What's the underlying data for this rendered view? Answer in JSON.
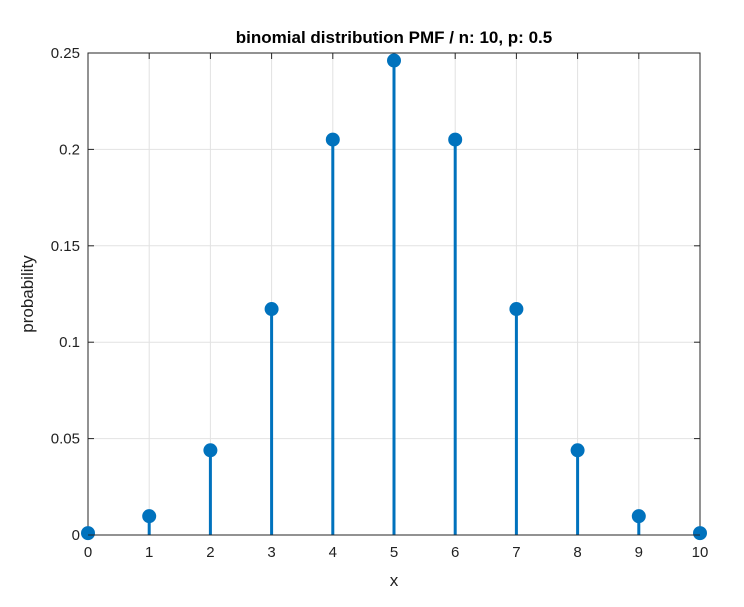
{
  "chart_data": {
    "type": "stem",
    "title": "binomial distribution PMF / n: 10, p: 0.5",
    "xlabel": "x",
    "ylabel": "probability",
    "xlim": [
      0,
      10
    ],
    "ylim": [
      0,
      0.25
    ],
    "xticks": [
      "0",
      "1",
      "2",
      "3",
      "4",
      "5",
      "6",
      "7",
      "8",
      "9",
      "10"
    ],
    "yticks": [
      "0",
      "0.05",
      "0.1",
      "0.15",
      "0.2",
      "0.25"
    ],
    "grid": true,
    "series_color": "#0072BD",
    "x": [
      0,
      1,
      2,
      3,
      4,
      5,
      6,
      7,
      8,
      9,
      10
    ],
    "y": [
      0.000977,
      0.009766,
      0.043945,
      0.117188,
      0.205078,
      0.246094,
      0.205078,
      0.117188,
      0.043945,
      0.009766,
      0.000977
    ]
  }
}
